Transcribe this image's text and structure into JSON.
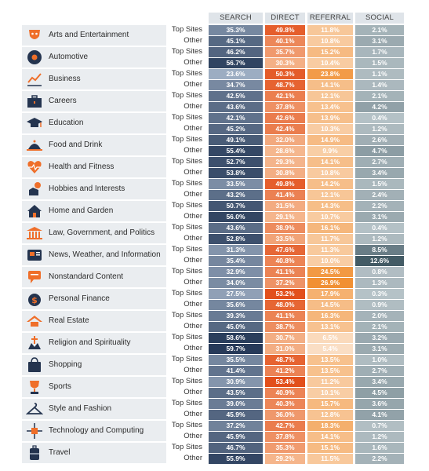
{
  "chart_data": {
    "type": "table",
    "columns": [
      "SEARCH",
      "DIRECT",
      "REFERRAL",
      "SOCIAL"
    ],
    "row_types": [
      "Top Sites",
      "Other"
    ],
    "categories": [
      {
        "name": "Arts and Entertainment",
        "icon": "theater-mask-icon",
        "top": [
          "35.3%",
          "49.8%",
          "11.8%",
          "2.1%"
        ],
        "other": [
          "45.1%",
          "40.1%",
          "10.8%",
          "3.1%"
        ]
      },
      {
        "name": "Automotive",
        "icon": "wheel-icon",
        "top": [
          "46.2%",
          "35.7%",
          "15.2%",
          "1.7%"
        ],
        "other": [
          "56.7%",
          "30.3%",
          "10.4%",
          "1.5%"
        ]
      },
      {
        "name": "Business",
        "icon": "line-chart-icon",
        "top": [
          "23.6%",
          "50.3%",
          "23.8%",
          "1.1%"
        ],
        "other": [
          "34.7%",
          "48.7%",
          "14.1%",
          "1.4%"
        ]
      },
      {
        "name": "Careers",
        "icon": "briefcase-icon",
        "top": [
          "42.5%",
          "42.1%",
          "12.1%",
          "2.1%"
        ],
        "other": [
          "43.6%",
          "37.8%",
          "13.4%",
          "4.2%"
        ]
      },
      {
        "name": "Education",
        "icon": "graduation-cap-icon",
        "top": [
          "42.1%",
          "42.6%",
          "13.9%",
          "0.4%"
        ],
        "other": [
          "45.2%",
          "42.4%",
          "10.3%",
          "1.2%"
        ]
      },
      {
        "name": "Food and Drink",
        "icon": "cloche-icon",
        "top": [
          "49.1%",
          "32.0%",
          "14.9%",
          "2.6%"
        ],
        "other": [
          "55.4%",
          "28.6%",
          "9.9%",
          "4.7%"
        ]
      },
      {
        "name": "Health and Fitness",
        "icon": "heartbeat-icon",
        "top": [
          "52.7%",
          "29.3%",
          "14.1%",
          "2.7%"
        ],
        "other": [
          "53.8%",
          "30.8%",
          "10.8%",
          "3.4%"
        ]
      },
      {
        "name": "Hobbies and Interests",
        "icon": "hobby-hand-icon",
        "top": [
          "33.5%",
          "49.8%",
          "14.2%",
          "1.5%"
        ],
        "other": [
          "43.2%",
          "41.4%",
          "12.1%",
          "2.4%"
        ]
      },
      {
        "name": "Home and Garden",
        "icon": "house-icon",
        "top": [
          "50.7%",
          "31.5%",
          "14.3%",
          "2.2%"
        ],
        "other": [
          "56.0%",
          "29.1%",
          "10.7%",
          "3.1%"
        ]
      },
      {
        "name": "Law, Government, and Politics",
        "icon": "government-building-icon",
        "top": [
          "43.6%",
          "38.9%",
          "16.1%",
          "0.4%"
        ],
        "other": [
          "52.8%",
          "33.5%",
          "11.7%",
          "1.2%"
        ]
      },
      {
        "name": "News, Weather, and Information",
        "icon": "newspaper-icon",
        "top": [
          "31.3%",
          "47.6%",
          "11.3%",
          "8.5%"
        ],
        "other": [
          "35.4%",
          "40.8%",
          "10.0%",
          "12.6%"
        ]
      },
      {
        "name": "Nonstandard Content",
        "icon": "speech-bubble-icon",
        "top": [
          "32.9%",
          "41.1%",
          "24.5%",
          "0.8%"
        ],
        "other": [
          "34.0%",
          "37.2%",
          "26.9%",
          "1.3%"
        ]
      },
      {
        "name": "Personal Finance",
        "icon": "money-bag-icon",
        "top": [
          "27.5%",
          "53.2%",
          "17.9%",
          "0.3%"
        ],
        "other": [
          "35.6%",
          "48.0%",
          "14.5%",
          "0.9%"
        ]
      },
      {
        "name": "Real Estate",
        "icon": "roof-icon",
        "top": [
          "39.3%",
          "41.1%",
          "16.3%",
          "2.0%"
        ],
        "other": [
          "45.0%",
          "38.7%",
          "13.1%",
          "2.1%"
        ]
      },
      {
        "name": "Religion and Spirituality",
        "icon": "praying-hands-icon",
        "top": [
          "58.6%",
          "30.7%",
          "6.5%",
          "3.2%"
        ],
        "other": [
          "59.7%",
          "31.0%",
          "5.4%",
          "3.1%"
        ]
      },
      {
        "name": "Shopping",
        "icon": "shopping-bag-icon",
        "top": [
          "35.5%",
          "48.7%",
          "13.5%",
          "1.0%"
        ],
        "other": [
          "41.4%",
          "41.2%",
          "13.5%",
          "2.7%"
        ]
      },
      {
        "name": "Sports",
        "icon": "trophy-icon",
        "top": [
          "30.9%",
          "53.4%",
          "11.2%",
          "3.4%"
        ],
        "other": [
          "43.5%",
          "40.9%",
          "10.1%",
          "4.5%"
        ]
      },
      {
        "name": "Style and Fashion",
        "icon": "hanger-icon",
        "top": [
          "39.0%",
          "40.3%",
          "15.7%",
          "3.6%"
        ],
        "other": [
          "45.9%",
          "36.0%",
          "12.8%",
          "4.1%"
        ]
      },
      {
        "name": "Technology and Computing",
        "icon": "circuit-icon",
        "top": [
          "37.2%",
          "42.7%",
          "18.3%",
          "0.7%"
        ],
        "other": [
          "45.9%",
          "37.8%",
          "14.1%",
          "1.2%"
        ]
      },
      {
        "name": "Travel",
        "icon": "suitcase-icon",
        "top": [
          "46.7%",
          "35.3%",
          "15.1%",
          "1.6%"
        ],
        "other": [
          "55.9%",
          "29.2%",
          "11.5%",
          "2.2%"
        ]
      }
    ]
  },
  "colors": {
    "search": [
      "#a8b8cc",
      "#1f3352"
    ],
    "direct": [
      "#f7c29a",
      "#e0440f"
    ],
    "referral": [
      "#fbe3cd",
      "#f08c2c"
    ],
    "social": [
      "#b8c4c9",
      "#3f5862"
    ],
    "icon_dark": "#24344f",
    "icon_accent": "#ef6f2a"
  }
}
